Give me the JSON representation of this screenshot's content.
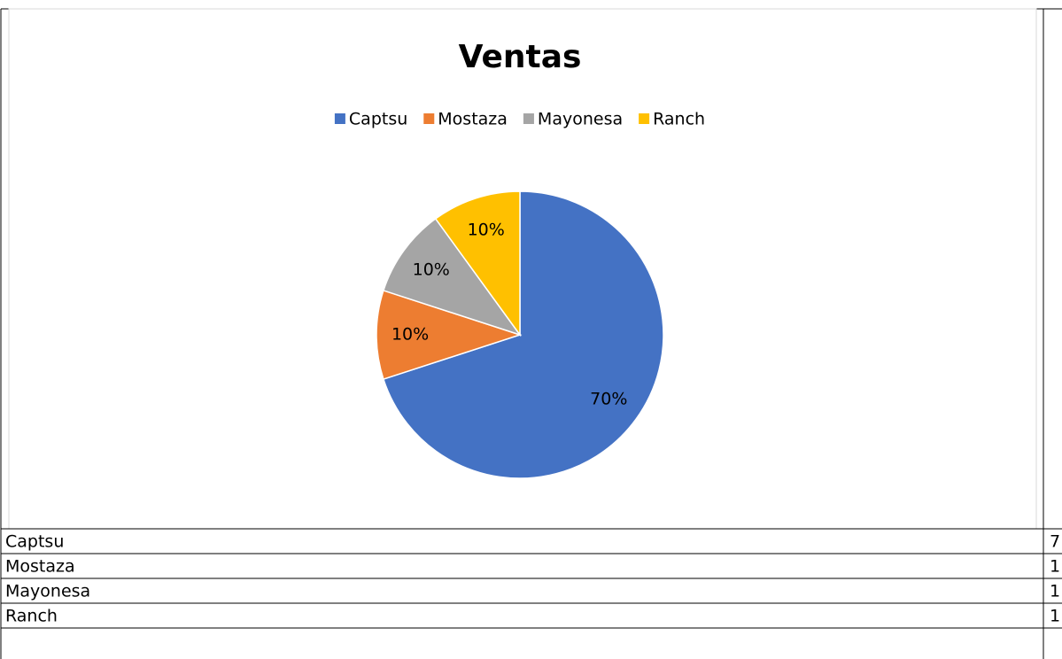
{
  "chart_data": {
    "type": "pie",
    "title": "Ventas",
    "categories": [
      "Captsu",
      "Mostaza",
      "Mayonesa",
      "Ranch"
    ],
    "values": [
      70,
      10,
      10,
      10
    ],
    "value_labels": [
      "70%",
      "10%",
      "10%",
      "10%"
    ],
    "colors": [
      "#4472c4",
      "#ed7d31",
      "#a5a5a5",
      "#ffc000"
    ],
    "legend": "top"
  },
  "table": {
    "rows": [
      [
        "Captsu",
        "7"
      ],
      [
        "Mostaza",
        "1"
      ],
      [
        "Mayonesa",
        "1"
      ],
      [
        "Ranch",
        "1"
      ]
    ]
  }
}
